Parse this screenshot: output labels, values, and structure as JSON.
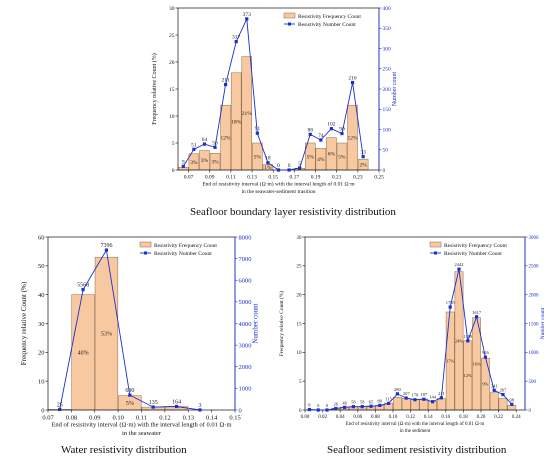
{
  "captions": {
    "top": "Seafloor boundary layer resistivity distribution",
    "water": "Water resistivity distribution",
    "sediment": "Seafloor sediment resistivity distribution"
  },
  "colors": {
    "bar_fill": "#f8c9a0",
    "bar_stroke": "#8a6a4a",
    "line": "#1a2fd0",
    "right_axis": "#1a2fd0",
    "left_axis": "#111111"
  },
  "chart_data": [
    {
      "id": "boundary",
      "type": "bar+line",
      "legend": [
        "Resistivity Frequency Count",
        "Resistivity Number Count"
      ],
      "ylabel": "Frequency relative Count (%)",
      "y2label": "Number count",
      "xlabel_lines": [
        "End of resistivity interval (Ω·m) with the interval length of 0.01 Ω·m",
        "in the seawater-sediment trasition"
      ],
      "xlim": [
        0.06,
        0.25
      ],
      "ylim": [
        0,
        30
      ],
      "y2lim": [
        0,
        400
      ],
      "xticks": [
        "0.07",
        "0.09",
        "0.11",
        "0.13",
        "0.15",
        "0.17",
        "0.19",
        "0.21",
        "0.23",
        "0.25"
      ],
      "yticks": [
        0,
        5,
        10,
        15,
        20,
        25,
        30
      ],
      "y2ticks": [
        0,
        50,
        100,
        150,
        200,
        250,
        300,
        350,
        400
      ],
      "bin_width": 0.01,
      "x": [
        0.07,
        0.08,
        0.09,
        0.1,
        0.11,
        0.12,
        0.13,
        0.14,
        0.15,
        0.16,
        0.17,
        0.18,
        0.19,
        0.2,
        0.21,
        0.22,
        0.23,
        0.24
      ],
      "bars": [
        0.5,
        3,
        3.6,
        3.1,
        12,
        18,
        21,
        5,
        1,
        0,
        0,
        0.3,
        5,
        4,
        6,
        5,
        12,
        2
      ],
      "bar_labels": [
        "",
        "3%",
        "3%",
        "3%",
        "12%",
        "18%",
        "21%",
        "5%",
        "1%",
        "",
        "",
        "",
        "5%",
        "4%",
        "6%",
        "5%",
        "12%",
        "2%"
      ],
      "counts": [
        9,
        51,
        64,
        56,
        211,
        317,
        373,
        91,
        18,
        0,
        0,
        5,
        88,
        74,
        102,
        90,
        216,
        33
      ],
      "count_labels": [
        "9",
        "51",
        "64",
        "56",
        "211",
        "317",
        "373",
        "91",
        "18",
        "0",
        "0",
        "5",
        "88",
        "74",
        "102",
        "90",
        "216",
        "33"
      ]
    },
    {
      "id": "water",
      "type": "bar+line",
      "legend": [
        "Resistivity Frequency Count",
        "Resistivity Number Count"
      ],
      "ylabel": "Frequency relative Count (%)",
      "y2label": "Number count",
      "xlabel_lines": [
        "End of resistivity interval (Ω·m) with the interval length of 0.01 Ω·m",
        "in the seawater"
      ],
      "xlim": [
        0.07,
        0.15
      ],
      "ylim": [
        0,
        60
      ],
      "y2lim": [
        0,
        8000
      ],
      "xticks": [
        "0.07",
        "0.08",
        "0.09",
        "0.10",
        "0.11",
        "0.12",
        "0.13",
        "0.14",
        "0.15"
      ],
      "yticks": [
        0,
        10,
        20,
        30,
        40,
        50,
        60
      ],
      "y2ticks": [
        0,
        1000,
        2000,
        3000,
        4000,
        5000,
        6000,
        7000,
        8000
      ],
      "bin_width": 0.01,
      "x": [
        0.08,
        0.09,
        0.1,
        0.11,
        0.12,
        0.13,
        0.14
      ],
      "bars": [
        0.2,
        40,
        53,
        5,
        1,
        1.2,
        0
      ],
      "bar_labels": [
        "",
        "40%",
        "53%",
        "5%",
        "",
        "",
        ""
      ],
      "counts": [
        25,
        5568,
        7396,
        690,
        135,
        164,
        3
      ],
      "count_labels": [
        "25",
        "5568",
        "7396",
        "690",
        "135",
        "164",
        "3"
      ]
    },
    {
      "id": "sediment",
      "type": "bar+line",
      "legend": [
        "Resistivity Frequency Count",
        "Resistivity Number Count"
      ],
      "ylabel": "Frequency relative Count (%)",
      "y2label": "Number count",
      "xlabel_lines": [
        "End of resistivity interval (Ω·m) with the interval length of 0.01 Ω·m",
        "in the sediment"
      ],
      "xlim": [
        0.0,
        0.25
      ],
      "ylim": [
        0,
        30
      ],
      "y2lim": [
        0,
        3000
      ],
      "xticks": [
        "0.00",
        "0.02",
        "0.04",
        "0.06",
        "0.08",
        "0.10",
        "0.12",
        "0.14",
        "0.16",
        "0.18",
        "0.20",
        "0.22",
        "0.24"
      ],
      "yticks": [
        0,
        5,
        10,
        15,
        20,
        25,
        30
      ],
      "y2ticks": [
        0,
        500,
        1000,
        1500,
        2000,
        2500,
        3000
      ],
      "bin_width": 0.01,
      "x": [
        0.01,
        0.02,
        0.03,
        0.04,
        0.05,
        0.06,
        0.07,
        0.08,
        0.09,
        0.1,
        0.11,
        0.12,
        0.13,
        0.14,
        0.15,
        0.16,
        0.17,
        0.18,
        0.19,
        0.2,
        0.21,
        0.22,
        0.23,
        0.24
      ],
      "bars": [
        0,
        0,
        0,
        0.3,
        0.5,
        0.6,
        0.6,
        0.7,
        0.8,
        1.2,
        2.2,
        2.0,
        1.8,
        1.9,
        1.5,
        2.0,
        17,
        24,
        12,
        16,
        9,
        3,
        2,
        0.8
      ],
      "bar_labels": [
        "",
        "",
        "",
        "",
        "",
        "",
        "",
        "",
        "",
        "",
        "",
        "",
        "",
        "",
        "",
        "",
        "17%",
        "24%",
        "12%",
        "16%",
        "9%",
        "",
        "",
        ""
      ],
      "counts": [
        8,
        0,
        0,
        26,
        46,
        58,
        58,
        65,
        80,
        115,
        280,
        207,
        178,
        187,
        144,
        211,
        1785,
        2442,
        1199,
        1617,
        916,
        341,
        267,
        98
      ],
      "count_labels": [
        "8",
        "0",
        "0",
        "26",
        "46",
        "58",
        "58",
        "65",
        "80",
        "115",
        "280",
        "207",
        "178",
        "187",
        "144",
        "211",
        "1785",
        "2442",
        "1199",
        "1617",
        "916",
        "341",
        "267",
        "98"
      ]
    }
  ]
}
